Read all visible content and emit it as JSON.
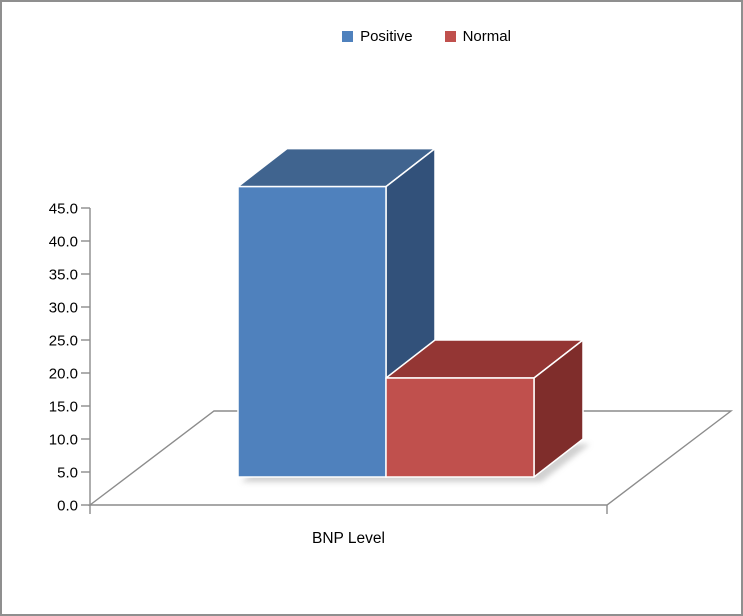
{
  "window": {
    "background": "#ffffff",
    "border_color": "#8f8f8f"
  },
  "chart_data": {
    "type": "bar",
    "subtype": "3d_clustered_column",
    "title": "",
    "categories": [
      "BNP Level"
    ],
    "series": [
      {
        "name": "Positive",
        "values": [
          44
        ],
        "color": "#4f81bd",
        "top_color": "#40648f",
        "side_color": "#32517a"
      },
      {
        "name": "Normal",
        "values": [
          15
        ],
        "color": "#c0504d",
        "top_color": "#943634",
        "side_color": "#7f2d2b"
      }
    ],
    "y_axis": {
      "min": 0,
      "max": 45,
      "step": 5,
      "tick_labels": [
        "0.0",
        "5.0",
        "10.0",
        "15.0",
        "20.0",
        "25.0",
        "30.0",
        "35.0",
        "40.0",
        "45.0"
      ]
    },
    "x_axis": {
      "label": "BNP Level"
    },
    "legend": {
      "position": "top"
    },
    "grid": false,
    "axis_color": "#8c8c8c",
    "text_color": "#000000",
    "bar_edge_color": "#ffffff",
    "shadow_color": "#ababab"
  }
}
